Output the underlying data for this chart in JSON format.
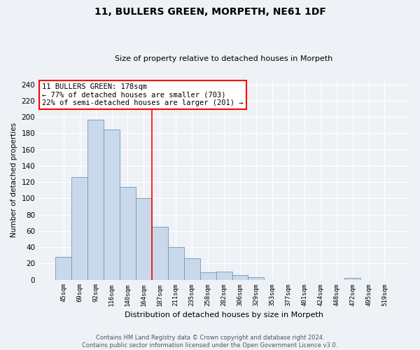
{
  "title": "11, BULLERS GREEN, MORPETH, NE61 1DF",
  "subtitle": "Size of property relative to detached houses in Morpeth",
  "xlabel": "Distribution of detached houses by size in Morpeth",
  "ylabel": "Number of detached properties",
  "bin_labels": [
    "45sqm",
    "69sqm",
    "92sqm",
    "116sqm",
    "140sqm",
    "164sqm",
    "187sqm",
    "211sqm",
    "235sqm",
    "258sqm",
    "282sqm",
    "306sqm",
    "329sqm",
    "353sqm",
    "377sqm",
    "401sqm",
    "424sqm",
    "448sqm",
    "472sqm",
    "495sqm",
    "519sqm"
  ],
  "bar_heights": [
    28,
    126,
    197,
    185,
    114,
    100,
    65,
    40,
    26,
    9,
    10,
    6,
    3,
    0,
    0,
    0,
    0,
    0,
    2,
    0,
    0
  ],
  "bar_color": "#c9d9ea",
  "bar_edge_color": "#6699bb",
  "vline_x_index": 6,
  "vline_color": "red",
  "annotation_text": "11 BULLERS GREEN: 178sqm\n← 77% of detached houses are smaller (703)\n22% of semi-detached houses are larger (201) →",
  "annotation_box_color": "white",
  "annotation_box_edge_color": "red",
  "ylim": [
    0,
    245
  ],
  "yticks": [
    0,
    20,
    40,
    60,
    80,
    100,
    120,
    140,
    160,
    180,
    200,
    220,
    240
  ],
  "footer_line1": "Contains HM Land Registry data © Crown copyright and database right 2024.",
  "footer_line2": "Contains public sector information licensed under the Open Government Licence v3.0.",
  "bg_color": "#eef2f7",
  "plot_bg_color": "#eef2f7",
  "grid_color": "white",
  "title_fontsize": 10,
  "subtitle_fontsize": 8,
  "xlabel_fontsize": 8,
  "ylabel_fontsize": 7.5,
  "ytick_fontsize": 7.5,
  "xtick_fontsize": 6.5,
  "annotation_fontsize": 7.5,
  "footer_fontsize": 6
}
